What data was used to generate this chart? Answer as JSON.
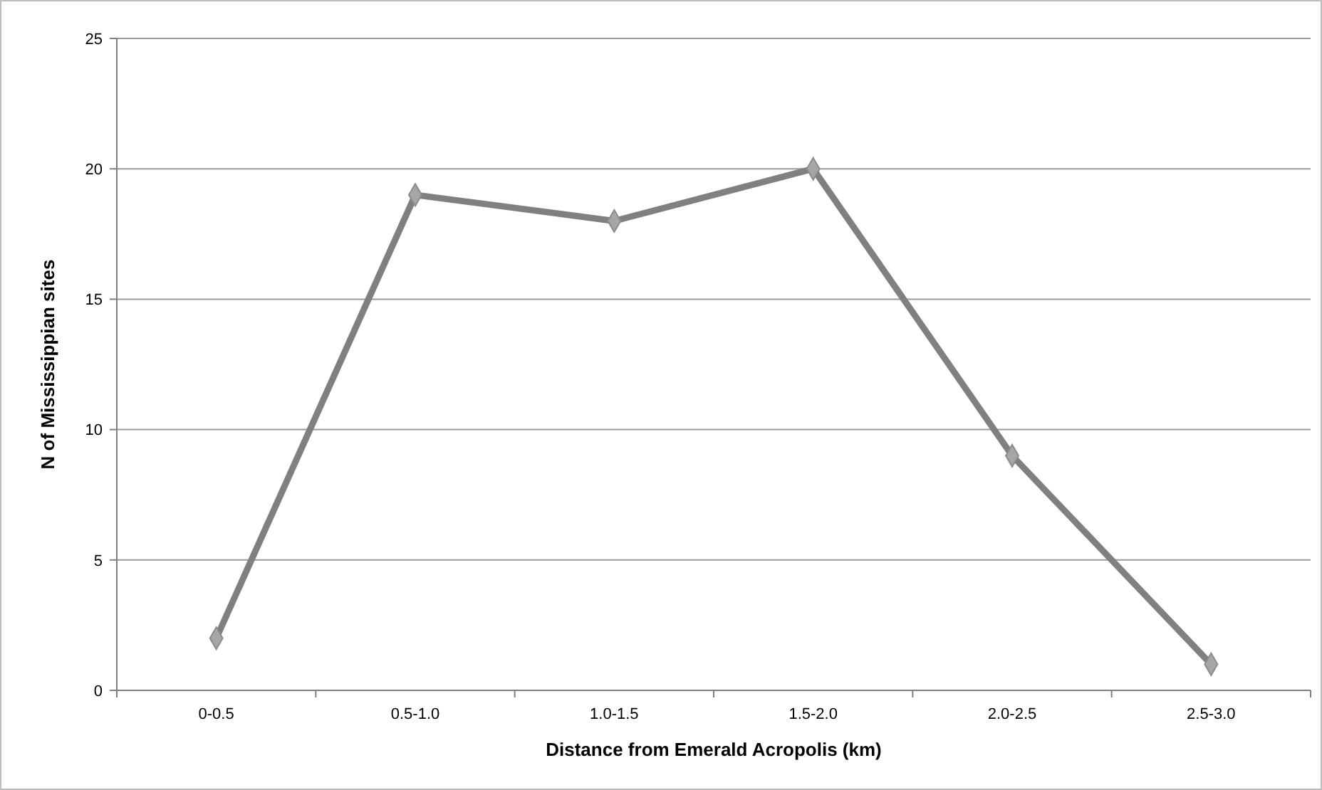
{
  "chart_data": {
    "type": "line",
    "xlabel": "Distance from Emerald Acropolis (km)",
    "ylabel": "N of Mississippian sites",
    "categories": [
      "0-0.5",
      "0.5-1.0",
      "1.0-1.5",
      "1.5-2.0",
      "2.0-2.5",
      "2.5-3.0"
    ],
    "series": [
      {
        "color": "#808080",
        "values": [
          2,
          19,
          18,
          20,
          9,
          1
        ]
      }
    ],
    "ylim": [
      0,
      25
    ],
    "yticks": [
      0,
      5,
      10,
      15,
      20,
      25
    ],
    "grid": "y",
    "marker": "diamond",
    "line_style": "solid"
  }
}
